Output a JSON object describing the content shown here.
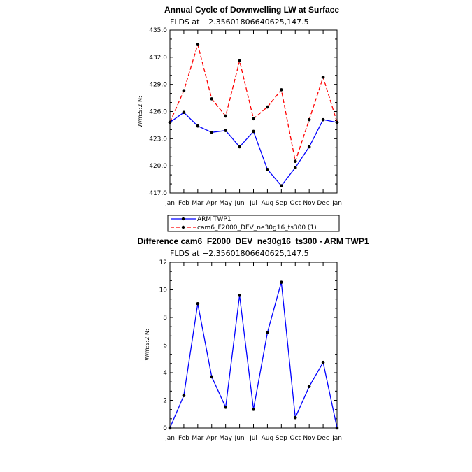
{
  "chart_data": [
    {
      "type": "line",
      "title": "Annual Cycle of Downwelling LW at Surface",
      "subtitle": "FLDS at −2.35601806640625,147.5",
      "ylabel": "W/m:S:2:N:",
      "categories": [
        "Jan",
        "Feb",
        "Mar",
        "Apr",
        "May",
        "Jun",
        "Jul",
        "Aug",
        "Sep",
        "Oct",
        "Nov",
        "Dec",
        "Jan"
      ],
      "ylim": [
        417.0,
        435.0
      ],
      "yticks": [
        "417.0",
        "420.0",
        "423.0",
        "426.0",
        "429.0",
        "432.0",
        "435.0"
      ],
      "series": [
        {
          "name": "ARM TWP1",
          "color": "#0000ff",
          "dash": "solid",
          "values": [
            424.8,
            425.9,
            424.4,
            423.7,
            423.9,
            422.1,
            423.8,
            419.6,
            417.8,
            419.8,
            422.1,
            425.1,
            424.8
          ]
        },
        {
          "name": "cam6_F2000_DEV_ne30g16_ts300 (1)",
          "color": "#ff0000",
          "dash": "dashed",
          "values": [
            424.8,
            428.3,
            433.4,
            427.4,
            425.5,
            431.6,
            425.2,
            426.5,
            428.4,
            420.5,
            425.1,
            429.8,
            424.8
          ]
        }
      ],
      "legend": "bottom"
    },
    {
      "type": "line",
      "title": "Difference cam6_F2000_DEV_ne30g16_ts300 - ARM TWP1",
      "subtitle": "FLDS at −2.35601806640625,147.5",
      "ylabel": "W/m:S:2:N:",
      "categories": [
        "Jan",
        "Feb",
        "Mar",
        "Apr",
        "May",
        "Jun",
        "Jul",
        "Aug",
        "Sep",
        "Oct",
        "Nov",
        "Dec",
        "Jan"
      ],
      "ylim": [
        0,
        12
      ],
      "yticks": [
        "0",
        "2",
        "4",
        "6",
        "8",
        "10",
        "12"
      ],
      "series": [
        {
          "name": "",
          "color": "#0000ff",
          "dash": "solid",
          "values": [
            0,
            2.35,
            9.0,
            3.7,
            1.5,
            9.6,
            1.35,
            6.9,
            10.55,
            0.75,
            3.0,
            4.75,
            0
          ]
        }
      ]
    }
  ]
}
